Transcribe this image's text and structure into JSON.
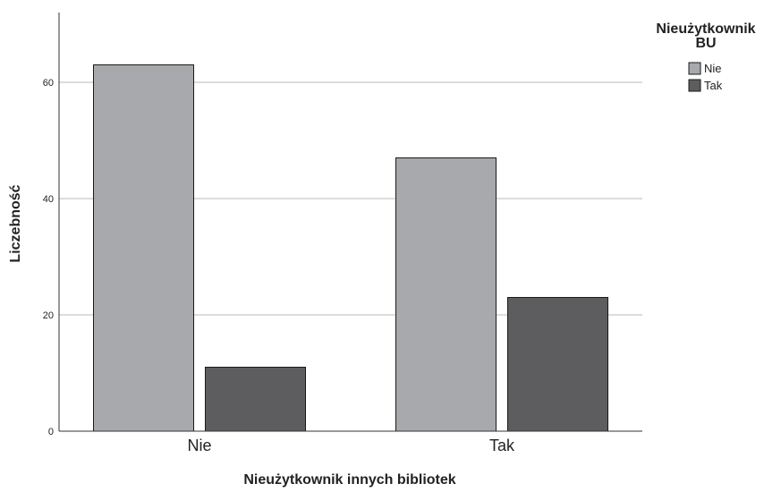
{
  "colors": {
    "series_nie": "#a8a9ad",
    "series_tak": "#5d5d5f",
    "gridline": "#b8b8b8",
    "axis": "#333333",
    "bar_stroke": "#1a1a1a"
  },
  "chart_data": {
    "type": "bar",
    "categories": [
      "Nie",
      "Tak"
    ],
    "series": [
      {
        "name": "Nie",
        "values": [
          63,
          47
        ]
      },
      {
        "name": "Tak",
        "values": [
          11,
          23
        ]
      }
    ],
    "xlabel": "Nieużytkownik innych bibliotek",
    "ylabel": "Liczebność",
    "ylim": [
      0,
      72
    ],
    "yticks": [
      0,
      20,
      40,
      60
    ],
    "grid": true,
    "legend": {
      "title_line1": "Nieużytkownik",
      "title_line2": "BU",
      "position": "top-right"
    }
  }
}
